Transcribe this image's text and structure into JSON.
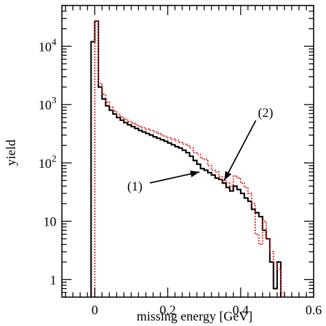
{
  "chart_data": {
    "type": "line",
    "subtype": "step-histogram",
    "title": "",
    "xlabel": "missing energy [GeV]",
    "ylabel": "yield",
    "xlim": [
      -0.09,
      0.6
    ],
    "ylim": [
      0.5,
      50000
    ],
    "yscale": "log",
    "grid": false,
    "x_ticks": [
      {
        "value": 0,
        "label": "0"
      },
      {
        "value": 0.2,
        "label": "0.2"
      },
      {
        "value": 0.4,
        "label": "0.4"
      },
      {
        "value": 0.6,
        "label": "0.6"
      }
    ],
    "y_ticks": [
      {
        "value": 1,
        "label": "1"
      },
      {
        "value": 10,
        "label": "10"
      },
      {
        "value": 100,
        "label": "10",
        "exponent": "2"
      },
      {
        "value": 1000,
        "label": "10",
        "exponent": "3"
      },
      {
        "value": 10000,
        "label": "10",
        "exponent": "4"
      }
    ],
    "bin_width": 0.01,
    "series": [
      {
        "label": "(1)",
        "color": "#000000",
        "style": "solid",
        "bins": [
          [
            -0.01,
            12000
          ],
          [
            0.0,
            27000
          ],
          [
            0.01,
            2000
          ],
          [
            0.02,
            1250
          ],
          [
            0.03,
            950
          ],
          [
            0.04,
            800
          ],
          [
            0.05,
            690
          ],
          [
            0.06,
            600
          ],
          [
            0.07,
            540
          ],
          [
            0.08,
            490
          ],
          [
            0.09,
            450
          ],
          [
            0.1,
            420
          ],
          [
            0.11,
            390
          ],
          [
            0.12,
            360
          ],
          [
            0.13,
            340
          ],
          [
            0.14,
            320
          ],
          [
            0.15,
            300
          ],
          [
            0.16,
            280
          ],
          [
            0.17,
            265
          ],
          [
            0.18,
            250
          ],
          [
            0.19,
            235
          ],
          [
            0.2,
            220
          ],
          [
            0.21,
            205
          ],
          [
            0.22,
            190
          ],
          [
            0.23,
            180
          ],
          [
            0.24,
            165
          ],
          [
            0.25,
            150
          ],
          [
            0.26,
            130
          ],
          [
            0.27,
            110
          ],
          [
            0.28,
            95
          ],
          [
            0.29,
            80
          ],
          [
            0.3,
            75
          ],
          [
            0.31,
            68
          ],
          [
            0.32,
            62
          ],
          [
            0.33,
            55
          ],
          [
            0.34,
            52
          ],
          [
            0.35,
            45
          ],
          [
            0.36,
            38
          ],
          [
            0.37,
            33
          ],
          [
            0.38,
            40
          ],
          [
            0.39,
            35
          ],
          [
            0.4,
            30
          ],
          [
            0.41,
            25
          ],
          [
            0.42,
            22
          ],
          [
            0.43,
            16
          ],
          [
            0.44,
            14
          ],
          [
            0.45,
            12
          ],
          [
            0.46,
            7
          ],
          [
            0.47,
            5
          ],
          [
            0.48,
            2
          ],
          [
            0.49,
            0.7
          ],
          [
            0.5,
            2
          ]
        ]
      },
      {
        "label": "(2)",
        "color": "#e0201e",
        "style": "dotted",
        "bins": [
          [
            0.0,
            27000
          ],
          [
            0.01,
            2300
          ],
          [
            0.02,
            1500
          ],
          [
            0.03,
            1100
          ],
          [
            0.04,
            900
          ],
          [
            0.05,
            780
          ],
          [
            0.06,
            680
          ],
          [
            0.07,
            610
          ],
          [
            0.08,
            560
          ],
          [
            0.09,
            510
          ],
          [
            0.1,
            480
          ],
          [
            0.11,
            450
          ],
          [
            0.12,
            420
          ],
          [
            0.13,
            400
          ],
          [
            0.14,
            380
          ],
          [
            0.15,
            360
          ],
          [
            0.16,
            340
          ],
          [
            0.17,
            320
          ],
          [
            0.18,
            300
          ],
          [
            0.19,
            285
          ],
          [
            0.2,
            270
          ],
          [
            0.21,
            255
          ],
          [
            0.22,
            240
          ],
          [
            0.23,
            225
          ],
          [
            0.24,
            210
          ],
          [
            0.25,
            200
          ],
          [
            0.26,
            180
          ],
          [
            0.27,
            150
          ],
          [
            0.28,
            140
          ],
          [
            0.29,
            120
          ],
          [
            0.3,
            115
          ],
          [
            0.31,
            90
          ],
          [
            0.32,
            75
          ],
          [
            0.33,
            70
          ],
          [
            0.34,
            58
          ],
          [
            0.35,
            50
          ],
          [
            0.36,
            45
          ],
          [
            0.37,
            40
          ],
          [
            0.38,
            60
          ],
          [
            0.39,
            55
          ],
          [
            0.4,
            45
          ],
          [
            0.41,
            38
          ],
          [
            0.42,
            30
          ],
          [
            0.43,
            20
          ],
          [
            0.44,
            6
          ],
          [
            0.45,
            4
          ],
          [
            0.46,
            10
          ],
          [
            0.47,
            5
          ],
          [
            0.48,
            3
          ],
          [
            0.49,
            2
          ],
          [
            0.5,
            1.5
          ],
          [
            0.51,
            0.6
          ]
        ]
      }
    ]
  }
}
